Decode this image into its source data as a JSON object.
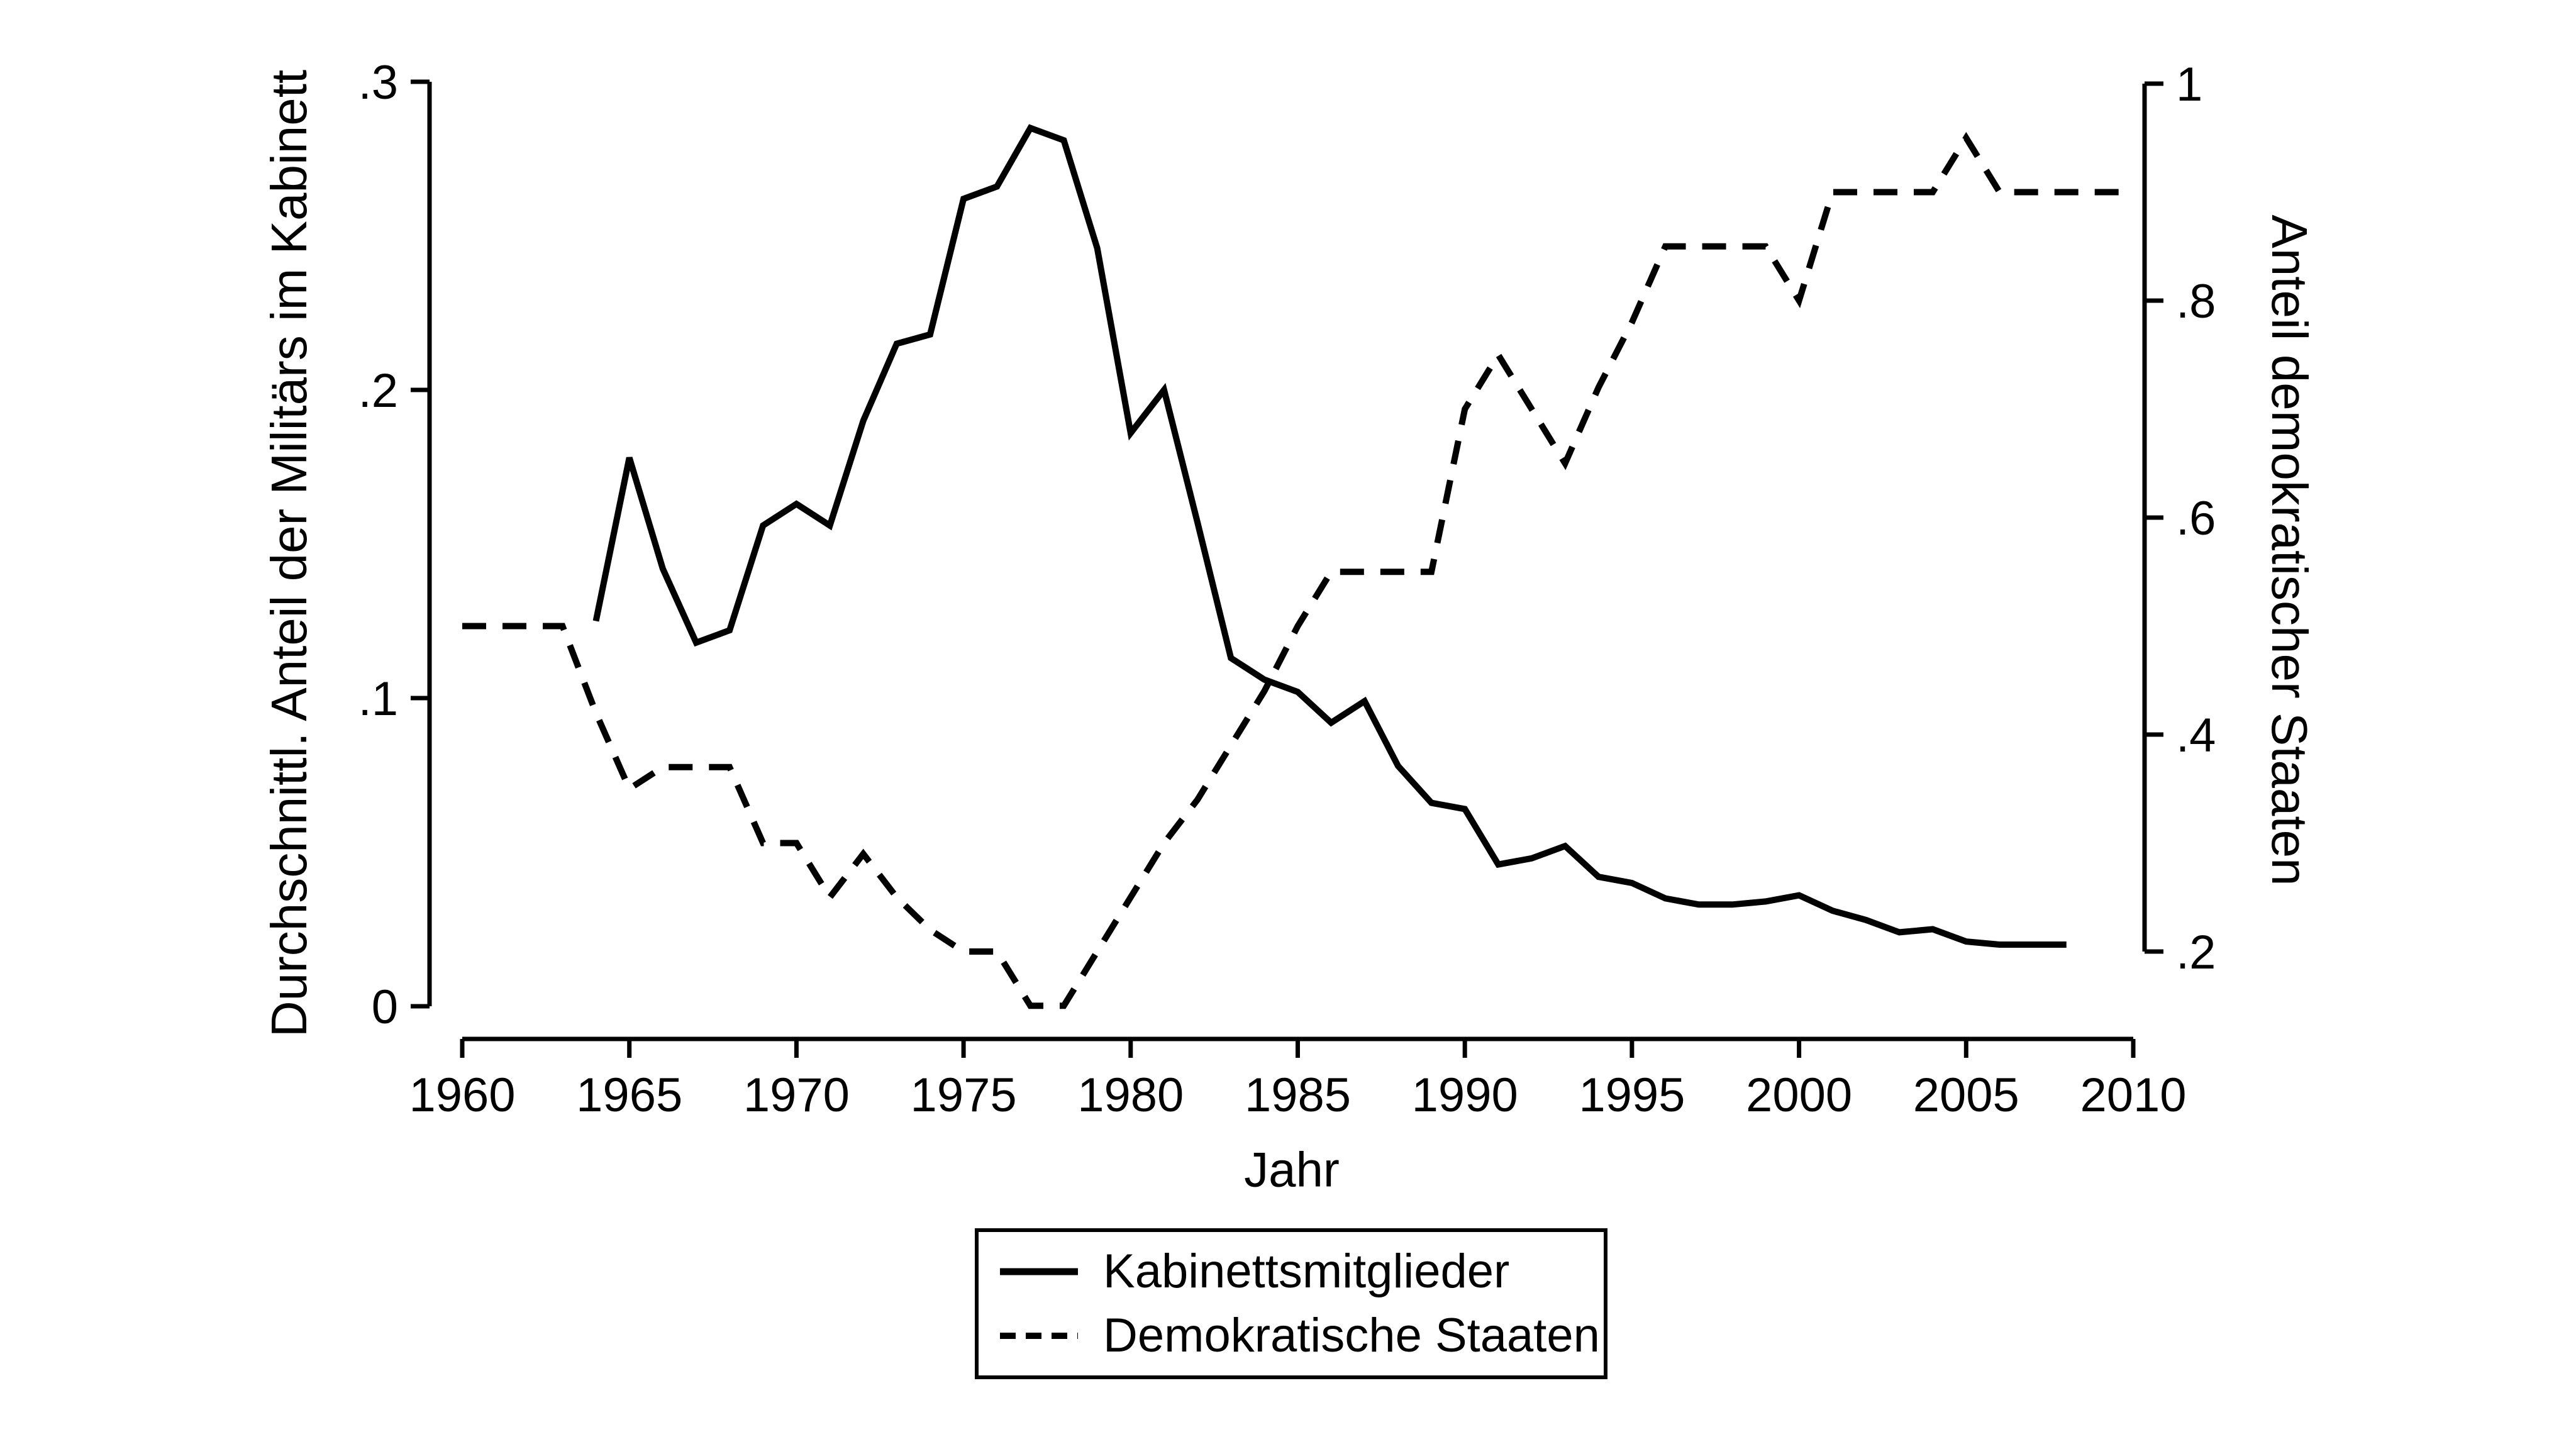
{
  "chart_data": {
    "type": "line",
    "title": "",
    "grid": false,
    "background_color": "#ffffff",
    "line_color": "#000000",
    "legend_position": "bottom-center",
    "x": {
      "label": "Jahr",
      "min": 1960,
      "max": 2010,
      "ticks": [
        1960,
        1965,
        1970,
        1975,
        1980,
        1985,
        1990,
        1995,
        2000,
        2005,
        2010
      ]
    },
    "y_left": {
      "label": "Durchschnittl. Anteil der Militärs im Kabinett",
      "min": 0,
      "max": 0.3,
      "ticks": [
        {
          "v": 0,
          "label": "0"
        },
        {
          "v": 0.1,
          "label": ".1"
        },
        {
          "v": 0.2,
          "label": ".2"
        },
        {
          "v": 0.3,
          "label": ".3"
        }
      ]
    },
    "y_right": {
      "label": "Anteil demokratischer Staaten",
      "min": 0.2,
      "max": 1,
      "ticks": [
        {
          "v": 0.2,
          "label": ".2"
        },
        {
          "v": 0.4,
          "label": ".4"
        },
        {
          "v": 0.6,
          "label": ".6"
        },
        {
          "v": 0.8,
          "label": ".8"
        },
        {
          "v": 1,
          "label": "1"
        }
      ]
    },
    "series": [
      {
        "name": "Kabinettsmitglieder",
        "axis": "left",
        "line_style": "solid",
        "points": [
          [
            1964,
            0.125
          ],
          [
            1965,
            0.178
          ],
          [
            1966,
            0.142
          ],
          [
            1967,
            0.118
          ],
          [
            1968,
            0.122
          ],
          [
            1969,
            0.156
          ],
          [
            1970,
            0.163
          ],
          [
            1971,
            0.156
          ],
          [
            1972,
            0.19
          ],
          [
            1973,
            0.215
          ],
          [
            1974,
            0.218
          ],
          [
            1975,
            0.262
          ],
          [
            1976,
            0.266
          ],
          [
            1977,
            0.285
          ],
          [
            1978,
            0.281
          ],
          [
            1979,
            0.246
          ],
          [
            1980,
            0.186
          ],
          [
            1981,
            0.2
          ],
          [
            1982,
            0.157
          ],
          [
            1983,
            0.113
          ],
          [
            1984,
            0.106
          ],
          [
            1985,
            0.102
          ],
          [
            1986,
            0.092
          ],
          [
            1987,
            0.099
          ],
          [
            1988,
            0.078
          ],
          [
            1989,
            0.066
          ],
          [
            1990,
            0.064
          ],
          [
            1991,
            0.046
          ],
          [
            1992,
            0.048
          ],
          [
            1993,
            0.052
          ],
          [
            1994,
            0.042
          ],
          [
            1995,
            0.04
          ],
          [
            1996,
            0.035
          ],
          [
            1997,
            0.033
          ],
          [
            1998,
            0.033
          ],
          [
            1999,
            0.034
          ],
          [
            2000,
            0.036
          ],
          [
            2001,
            0.031
          ],
          [
            2002,
            0.028
          ],
          [
            2003,
            0.024
          ],
          [
            2004,
            0.025
          ],
          [
            2005,
            0.021
          ],
          [
            2006,
            0.02
          ],
          [
            2007,
            0.02
          ],
          [
            2008,
            0.02
          ]
        ]
      },
      {
        "name": "Demokratische Staaten",
        "axis": "right",
        "line_style": "dashed",
        "points": [
          [
            1960,
            0.5
          ],
          [
            1961,
            0.5
          ],
          [
            1962,
            0.5
          ],
          [
            1963,
            0.5
          ],
          [
            1964,
            0.42
          ],
          [
            1965,
            0.35
          ],
          [
            1966,
            0.37
          ],
          [
            1967,
            0.37
          ],
          [
            1968,
            0.37
          ],
          [
            1969,
            0.3
          ],
          [
            1970,
            0.3
          ],
          [
            1971,
            0.25
          ],
          [
            1972,
            0.29
          ],
          [
            1973,
            0.25
          ],
          [
            1974,
            0.22
          ],
          [
            1975,
            0.2
          ],
          [
            1976,
            0.2
          ],
          [
            1977,
            0.15
          ],
          [
            1978,
            0.15
          ],
          [
            1979,
            0.2
          ],
          [
            1980,
            0.25
          ],
          [
            1981,
            0.3
          ],
          [
            1982,
            0.34
          ],
          [
            1983,
            0.39
          ],
          [
            1984,
            0.44
          ],
          [
            1985,
            0.5
          ],
          [
            1986,
            0.55
          ],
          [
            1987,
            0.55
          ],
          [
            1988,
            0.55
          ],
          [
            1989,
            0.55
          ],
          [
            1990,
            0.7
          ],
          [
            1991,
            0.75
          ],
          [
            1992,
            0.7
          ],
          [
            1993,
            0.65
          ],
          [
            1994,
            0.72
          ],
          [
            1995,
            0.78
          ],
          [
            1996,
            0.85
          ],
          [
            1997,
            0.85
          ],
          [
            1998,
            0.85
          ],
          [
            1999,
            0.85
          ],
          [
            2000,
            0.8
          ],
          [
            2001,
            0.9
          ],
          [
            2002,
            0.9
          ],
          [
            2003,
            0.9
          ],
          [
            2004,
            0.9
          ],
          [
            2005,
            0.95
          ],
          [
            2006,
            0.9
          ],
          [
            2007,
            0.9
          ],
          [
            2008,
            0.9
          ],
          [
            2009,
            0.9
          ],
          [
            2010,
            0.9
          ]
        ]
      }
    ]
  },
  "legend": {
    "items": [
      {
        "label": "Kabinettsmitglieder",
        "style": "solid"
      },
      {
        "label": "Demokratische Staaten",
        "style": "dashed"
      }
    ]
  },
  "colors": {
    "foreground": "#000000",
    "background": "#ffffff"
  }
}
